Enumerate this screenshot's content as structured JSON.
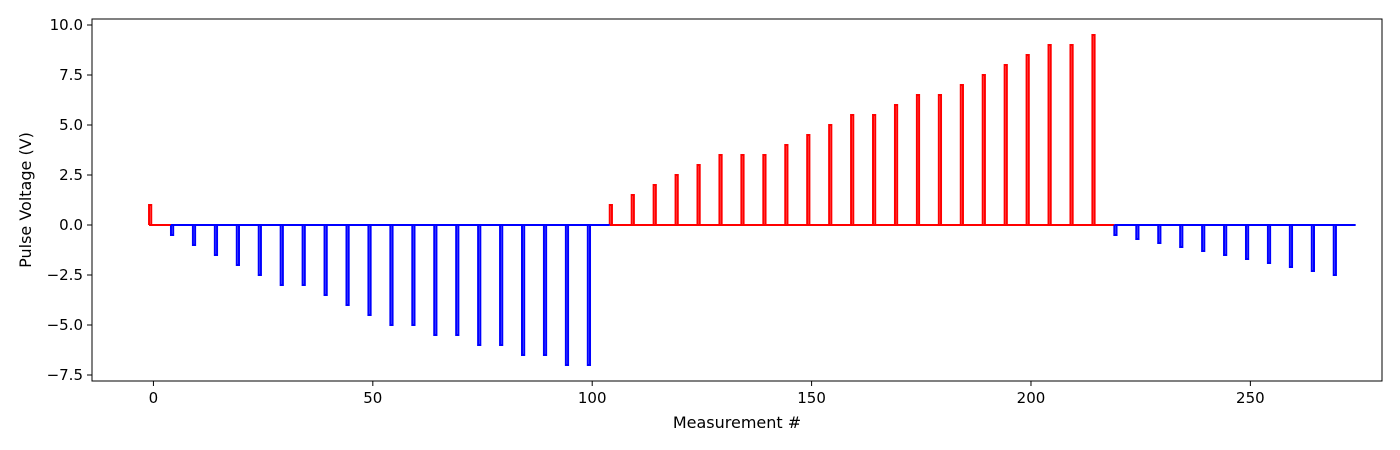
{
  "chart_data": {
    "type": "line",
    "title": "",
    "xlabel": "Measurement #",
    "ylabel": "Pulse Voltage (V)",
    "xlim": [
      -14,
      280
    ],
    "ylim": [
      -7.8,
      10.3
    ],
    "xticks": [
      0,
      50,
      100,
      150,
      200,
      250
    ],
    "xtick_labels": [
      "0",
      "50",
      "100",
      "150",
      "200",
      "250"
    ],
    "yticks": [
      -7.5,
      -5.0,
      -2.5,
      0.0,
      2.5,
      5.0,
      7.5,
      10.0
    ],
    "ytick_labels": [
      "−7.5",
      "−5.0",
      "−2.5",
      "0.0",
      "2.5",
      "5.0",
      "7.5",
      "10.0"
    ],
    "grid": false,
    "pulse_width": 0.5,
    "series": [
      {
        "color": "#ff0000",
        "pulse_x": [
          -1,
          104,
          109,
          114,
          119,
          124,
          129,
          134,
          139,
          144,
          149,
          154,
          159,
          164,
          169,
          174,
          179,
          184,
          189,
          194,
          199,
          204,
          209,
          214
        ],
        "amplitudes": [
          1.0,
          1.0,
          1.5,
          2.0,
          2.5,
          3.0,
          3.5,
          3.5,
          3.5,
          4.0,
          4.5,
          5.0,
          5.5,
          5.5,
          6.0,
          6.5,
          6.5,
          7.0,
          7.5,
          8.0,
          8.5,
          9.0,
          9.0,
          9.5
        ],
        "segments": [
          [
            -1,
            4
          ],
          [
            104,
            219
          ]
        ]
      },
      {
        "color": "#0000ff",
        "pulse_x": [
          4,
          9,
          14,
          19,
          24,
          29,
          34,
          39,
          44,
          49,
          54,
          59,
          64,
          69,
          74,
          79,
          84,
          89,
          94,
          99,
          219,
          224,
          229,
          234,
          239,
          244,
          249,
          254,
          259,
          264,
          269
        ],
        "amplitudes": [
          -0.5,
          -1.0,
          -1.5,
          -2.0,
          -2.5,
          -3.0,
          -3.0,
          -3.5,
          -4.0,
          -4.5,
          -5.0,
          -5.0,
          -5.5,
          -5.5,
          -6.0,
          -6.0,
          -6.5,
          -6.5,
          -7.0,
          -7.0,
          -0.5,
          -0.7,
          -0.9,
          -1.1,
          -1.3,
          -1.5,
          -1.7,
          -1.9,
          -2.1,
          -2.3,
          -2.5
        ],
        "segments": [
          [
            4,
            104
          ],
          [
            219,
            274
          ]
        ]
      }
    ]
  }
}
